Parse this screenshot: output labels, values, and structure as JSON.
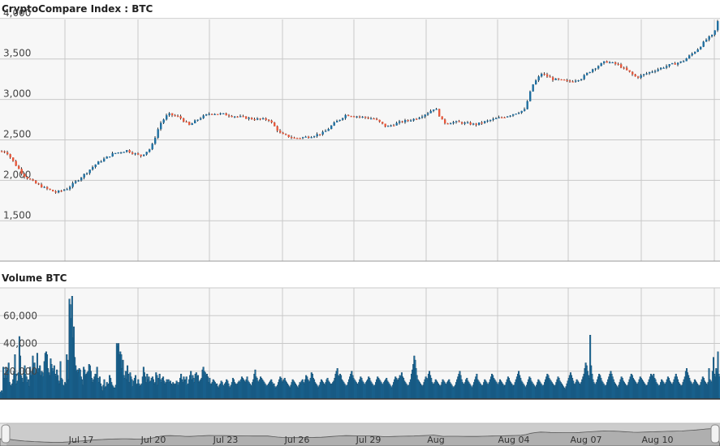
{
  "chart_data": [
    {
      "type": "candlestick",
      "title": "CryptoCompare Index : BTC",
      "ylim": [
        1500,
        4500
      ],
      "yticks": [
        "1,500",
        "2,000",
        "2,500",
        "3,000",
        "3,500",
        "4,000"
      ],
      "grid": true,
      "colors": {
        "up": "#1f6fa0",
        "down": "#e8593c",
        "wick": "#333333"
      },
      "anchors": [
        [
          0,
          2360
        ],
        [
          7,
          2350
        ],
        [
          16,
          2220
        ],
        [
          28,
          2060
        ],
        [
          43,
          1960
        ],
        [
          55,
          1900
        ],
        [
          68,
          1850
        ],
        [
          82,
          1900
        ],
        [
          100,
          2050
        ],
        [
          118,
          2210
        ],
        [
          138,
          2330
        ],
        [
          155,
          2370
        ],
        [
          172,
          2300
        ],
        [
          185,
          2400
        ],
        [
          196,
          2700
        ],
        [
          206,
          2820
        ],
        [
          220,
          2780
        ],
        [
          232,
          2680
        ],
        [
          245,
          2770
        ],
        [
          258,
          2830
        ],
        [
          272,
          2820
        ],
        [
          290,
          2790
        ],
        [
          310,
          2760
        ],
        [
          330,
          2750
        ],
        [
          345,
          2570
        ],
        [
          362,
          2520
        ],
        [
          380,
          2540
        ],
        [
          398,
          2590
        ],
        [
          410,
          2700
        ],
        [
          425,
          2810
        ],
        [
          440,
          2790
        ],
        [
          460,
          2760
        ],
        [
          475,
          2660
        ],
        [
          492,
          2720
        ],
        [
          510,
          2760
        ],
        [
          525,
          2830
        ],
        [
          535,
          2900
        ],
        [
          545,
          2710
        ],
        [
          560,
          2720
        ],
        [
          585,
          2690
        ],
        [
          605,
          2750
        ],
        [
          625,
          2800
        ],
        [
          645,
          2870
        ],
        [
          655,
          3180
        ],
        [
          666,
          3320
        ],
        [
          680,
          3250
        ],
        [
          700,
          3220
        ],
        [
          715,
          3260
        ],
        [
          728,
          3370
        ],
        [
          745,
          3470
        ],
        [
          760,
          3430
        ],
        [
          775,
          3330
        ],
        [
          783,
          3270
        ],
        [
          800,
          3340
        ],
        [
          822,
          3420
        ],
        [
          840,
          3470
        ],
        [
          858,
          3620
        ],
        [
          870,
          3750
        ],
        [
          878,
          3800
        ],
        [
          886,
          4060
        ]
      ]
    },
    {
      "type": "bar",
      "title": "Volume BTC",
      "ylim": [
        0,
        80000
      ],
      "yticks": [
        "20,000",
        "40,000",
        "60,000"
      ],
      "bar_color": "#1f6fa0",
      "values": [
        5000,
        6000,
        4000,
        23000,
        15000,
        18000,
        23000,
        15000,
        21000,
        26000,
        12000,
        10000,
        9000,
        11000,
        14000,
        20000,
        32000,
        18000,
        11000,
        13000,
        19000,
        45000,
        31000,
        17000,
        15000,
        12000,
        21000,
        24000,
        18000,
        16000,
        12000,
        14000,
        9000,
        23000,
        17000,
        20000,
        31000,
        22000,
        26000,
        18000,
        21000,
        33000,
        19000,
        22000,
        24000,
        17000,
        20000,
        19000,
        16000,
        27000,
        33000,
        34000,
        32000,
        22000,
        19000,
        17000,
        29000,
        25000,
        22000,
        20000,
        24000,
        18000,
        16000,
        21000,
        17000,
        13000,
        11000,
        27000,
        15000,
        14000,
        10000,
        9000,
        12000,
        11000,
        32000,
        28000,
        14000,
        72000,
        68000,
        58000,
        74000,
        44000,
        52000,
        30000,
        24000,
        20000,
        21000,
        19000,
        22000,
        21000,
        16000,
        14000,
        10000,
        23000,
        21000,
        17000,
        18000,
        19000,
        20000,
        25000,
        24000,
        20000,
        15000,
        12000,
        14000,
        16000,
        18000,
        17000,
        23000,
        15000,
        12000,
        16000,
        11000,
        9000,
        6000,
        10000,
        14000,
        8000,
        9000,
        12000,
        10000,
        11000,
        17000,
        15000,
        12000,
        10000,
        9000,
        8000,
        8000,
        10000,
        40000,
        38000,
        40000,
        32000,
        34000,
        32000,
        22000,
        28000,
        17000,
        15000,
        20000,
        14000,
        24000,
        18000,
        12000,
        19000,
        16000,
        14000,
        9000,
        13000,
        15000,
        17000,
        10000,
        11000,
        14000,
        11000,
        9000,
        10000,
        11000,
        16000,
        23000,
        19000,
        16000,
        12000,
        18000,
        14000,
        16000,
        12000,
        13000,
        15000,
        16000,
        14000,
        11000,
        12000,
        19000,
        17000,
        10000,
        15000,
        18000,
        14000,
        12000,
        15000,
        16000,
        13000,
        11000,
        12000,
        14000,
        12000,
        14000,
        12000,
        13000,
        11000,
        10000,
        12000,
        11000,
        10000,
        11000,
        13000,
        12000,
        10000,
        12000,
        15000,
        18000,
        14000,
        12000,
        16000,
        13000,
        14000,
        16000,
        10000,
        11000,
        14000,
        17000,
        20000,
        14000,
        17000,
        15000,
        12000,
        18000,
        19000,
        16000,
        17000,
        12000,
        13000,
        14000,
        15000,
        21000,
        23000,
        20000,
        19000,
        17000,
        18000,
        16000,
        12000,
        15000,
        11000,
        10000,
        12000,
        14000,
        13000,
        12000,
        10000,
        11000,
        9000,
        8000,
        10000,
        11000,
        13000,
        12000,
        10000,
        9000,
        11000,
        12000,
        14000,
        13000,
        11000,
        9000,
        8000,
        10000,
        12000,
        15000,
        14000,
        12000,
        11000,
        10000,
        11000,
        12000,
        13000,
        12000,
        14000,
        16000,
        15000,
        14000,
        13000,
        12000,
        14000,
        16000,
        13000,
        12000,
        11000,
        10000,
        9000,
        12000,
        14000,
        18000,
        21000,
        16000,
        15000,
        13000,
        12000,
        14000,
        16000,
        15000,
        14000,
        13000,
        12000,
        11000,
        10000,
        9000,
        10000,
        11000,
        12000,
        13000,
        14000,
        12000,
        10000,
        11000,
        9000,
        8000,
        9000,
        10000,
        12000,
        14000,
        16000,
        15000,
        13000,
        12000,
        14000,
        15000,
        13000,
        12000,
        11000,
        10000,
        9000,
        8000,
        10000,
        12000,
        14000,
        13000,
        12000,
        11000,
        10000,
        9000,
        8000,
        10000,
        12000,
        11000,
        13000,
        14000,
        12000,
        11000,
        14000,
        17000,
        16000,
        14000,
        13000,
        12000,
        15000,
        19000,
        18000,
        15000,
        14000,
        12000,
        11000,
        10000,
        9000,
        8000,
        10000,
        12000,
        14000,
        13000,
        12000,
        11000,
        10000,
        12000,
        14000,
        15000,
        13000,
        12000,
        11000,
        10000,
        11000,
        12000,
        13000,
        15000,
        18000,
        20000,
        22000,
        17000,
        16000,
        18000,
        17000,
        14000,
        13000,
        12000,
        11000,
        10000,
        9000,
        10000,
        12000,
        14000,
        16000,
        18000,
        20000,
        17000,
        15000,
        14000,
        13000,
        12000,
        11000,
        10000,
        12000,
        14000,
        16000,
        15000,
        13000,
        12000,
        11000,
        10000,
        12000,
        13000,
        14000,
        16000,
        15000,
        13000,
        12000,
        11000,
        10000,
        9000,
        10000,
        12000,
        14000,
        16000,
        15000,
        14000,
        13000,
        12000,
        11000,
        10000,
        12000,
        13000,
        14000,
        15000,
        13000,
        12000,
        11000,
        10000,
        9000,
        8000,
        10000,
        12000,
        14000,
        16000,
        15000,
        14000,
        13000,
        15000,
        17000,
        16000,
        19000,
        16000,
        15000,
        13000,
        12000,
        11000,
        10000,
        9000,
        10000,
        12000,
        14000,
        18000,
        21000,
        25000,
        31000,
        28000,
        22000,
        17000,
        14000,
        13000,
        12000,
        11000,
        10000,
        9000,
        10000,
        12000,
        14000,
        16000,
        15000,
        14000,
        18000,
        20000,
        17000,
        15000,
        12000,
        11000,
        10000,
        12000,
        14000,
        13000,
        12000,
        11000,
        10000,
        9000,
        10000,
        12000,
        14000,
        13000,
        12000,
        11000,
        10000,
        12000,
        13000,
        14000,
        12000,
        11000,
        10000,
        9000,
        8000,
        9000,
        10000,
        12000,
        14000,
        16000,
        18000,
        20000,
        17000,
        14000,
        12000,
        11000,
        10000,
        12000,
        14000,
        15000,
        13000,
        12000,
        11000,
        10000,
        9000,
        8000,
        10000,
        12000,
        14000,
        16000,
        18000,
        14000,
        13000,
        12000,
        11000,
        10000,
        9000,
        10000,
        12000,
        14000,
        13000,
        12000,
        11000,
        10000,
        12000,
        14000,
        16000,
        18000,
        17000,
        15000,
        14000,
        13000,
        12000,
        11000,
        10000,
        12000,
        14000,
        13000,
        12000,
        11000,
        10000,
        9000,
        10000,
        12000,
        14000,
        16000,
        15000,
        13000,
        12000,
        11000,
        10000,
        9000,
        10000,
        12000,
        14000,
        16000,
        18000,
        20000,
        17000,
        15000,
        13000,
        12000,
        11000,
        10000,
        9000,
        8000,
        10000,
        12000,
        14000,
        16000,
        15000,
        13000,
        12000,
        11000,
        10000,
        9000,
        8000,
        10000,
        12000,
        14000,
        13000,
        12000,
        11000,
        10000,
        9000,
        10000,
        12000,
        14000,
        16000,
        18000,
        17000,
        15000,
        14000,
        13000,
        12000,
        11000,
        10000,
        9000,
        10000,
        12000,
        14000,
        16000,
        15000,
        13000,
        12000,
        11000,
        10000,
        9000,
        8000,
        7000,
        9000,
        11000,
        13000,
        15000,
        17000,
        19000,
        17000,
        15000,
        13000,
        11000,
        10000,
        12000,
        14000,
        13000,
        12000,
        11000,
        10000,
        12000,
        14000,
        16000,
        18000,
        22000,
        26000,
        24000,
        20000,
        17000,
        15000,
        46000,
        24000,
        18000,
        14000,
        12000,
        11000,
        10000,
        12000,
        14000,
        16000,
        18000,
        17000,
        15000,
        13000,
        12000,
        11000,
        10000,
        9000,
        10000,
        12000,
        14000,
        16000,
        18000,
        20000,
        18000,
        16000,
        14000,
        12000,
        11000,
        10000,
        9000,
        8000,
        10000,
        12000,
        14000,
        16000,
        15000,
        13000,
        12000,
        11000,
        10000,
        9000,
        10000,
        12000,
        14000,
        16000,
        18000,
        17000,
        15000,
        14000,
        13000,
        12000,
        11000,
        10000,
        12000,
        14000,
        16000,
        15000,
        14000,
        13000,
        12000,
        11000,
        10000,
        9000,
        10000,
        12000,
        14000,
        16000,
        18000,
        17000,
        16000,
        18000,
        15000,
        14000,
        12000,
        11000,
        10000,
        9000,
        10000,
        12000,
        14000,
        13000,
        12000,
        11000,
        10000,
        12000,
        14000,
        16000,
        15000,
        13000,
        12000,
        11000,
        10000,
        12000,
        14000,
        16000,
        18000,
        16000,
        14000,
        12000,
        11000,
        10000,
        9000,
        10000,
        12000,
        14000,
        16000,
        20000,
        22000,
        19000,
        17000,
        15000,
        13000,
        12000,
        11000,
        10000,
        12000,
        14000,
        13000,
        12000,
        11000,
        10000,
        9000,
        10000,
        12000,
        14000,
        16000,
        15000,
        13000,
        12000,
        11000,
        10000,
        12000,
        22000,
        14000,
        13000,
        12000,
        20000,
        30000,
        18000,
        16000,
        22000,
        20000,
        34000,
        18000,
        16000
      ]
    }
  ],
  "x_axis": {
    "labels": [
      "Jul 17",
      "Jul 20",
      "Jul 23",
      "Jul 26",
      "Jul 29",
      "Aug",
      "Aug 04",
      "Aug 07",
      "Aug 10"
    ]
  },
  "navigator": {
    "labels": [
      "Jul 17",
      "Jul 20",
      "Jul 23",
      "Jul 26",
      "Jul 29",
      "Aug",
      "Aug 04",
      "Aug 07",
      "Aug 10"
    ]
  }
}
